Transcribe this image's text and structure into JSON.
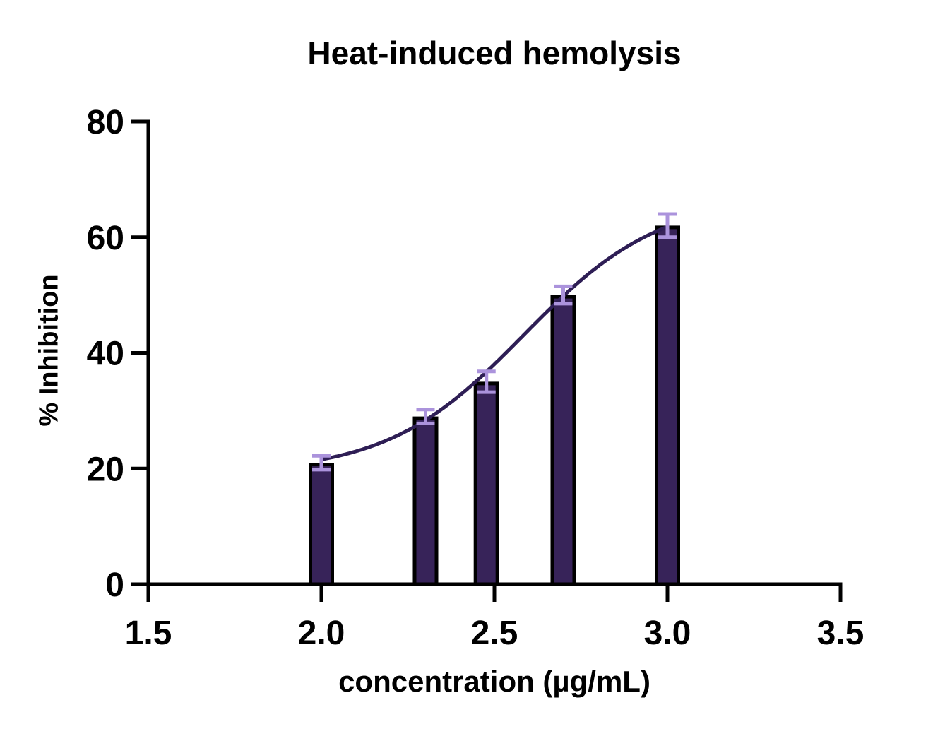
{
  "chart_data": {
    "type": "bar",
    "title": "Heat-induced hemolysis",
    "xlabel": "concentration (µg/mL)",
    "ylabel": "% Inhibition",
    "x": [
      2.0,
      2.301,
      2.477,
      2.699,
      3.0
    ],
    "values": [
      21,
      29,
      35,
      50,
      62
    ],
    "errors": [
      1.2,
      1.2,
      1.8,
      1.5,
      2.0
    ],
    "xlim": [
      1.5,
      3.5
    ],
    "ylim": [
      0,
      80
    ],
    "x_tick_values": [
      1.5,
      2.0,
      2.5,
      3.0,
      3.5
    ],
    "x_tick_labels": [
      "1.5",
      "2.0",
      "2.5",
      "3.0",
      "3.5"
    ],
    "y_tick_values": [
      0,
      20,
      40,
      60,
      80
    ],
    "y_tick_labels": [
      "0",
      "20",
      "40",
      "60",
      "80"
    ],
    "grid": false,
    "legend": "none",
    "fit_curve": {
      "model": "four-parameter logistic (sigmoid dose-response)",
      "bottom": 19.2,
      "top": 67,
      "logEC50": 2.585,
      "hillslope": 2.2,
      "x_range": [
        2.0,
        3.0
      ]
    },
    "colors": {
      "bar_fill": "#372359",
      "bar_border": "#000000",
      "error_bar": "#AB93DC",
      "curve": "#2E1E55",
      "axis": "#000000",
      "text": "#000000"
    }
  }
}
